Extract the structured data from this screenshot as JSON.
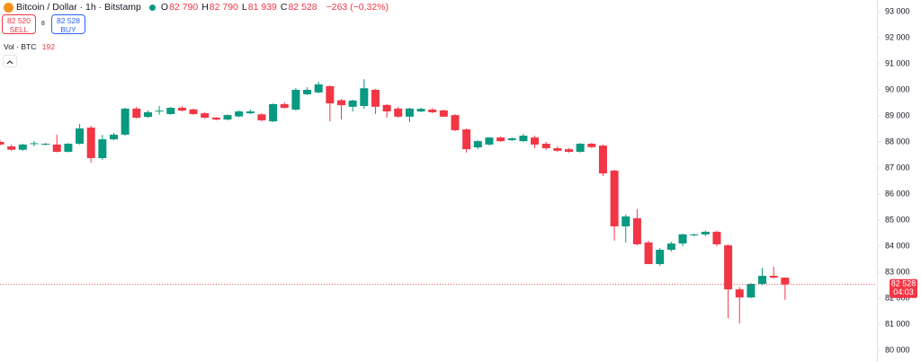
{
  "toolbar": {
    "symbol": "Bitcoin / Dollar · 1h · Bitstamp",
    "ohlc": [
      {
        "key": "O",
        "text": "82 790"
      },
      {
        "key": "H",
        "text": "82 790"
      },
      {
        "key": "L",
        "text": "81 939"
      },
      {
        "key": "C",
        "text": "82 528"
      }
    ],
    "change": "−263 (−0,32%)",
    "sell_price": "82 520",
    "sell_label": "SELL",
    "spread": "8",
    "buy_price": "82 528",
    "buy_label": "BUY",
    "volume_label": "Vol · BTC",
    "volume_value": "192"
  },
  "chart_data": {
    "type": "candlestick",
    "up_color": "#089981",
    "down_color": "#f23645",
    "grid": false,
    "ylim": [
      79500,
      93000
    ],
    "yticks": [
      {
        "value": 80000,
        "label": "80 000"
      },
      {
        "value": 81000,
        "label": "81 000"
      },
      {
        "value": 82000,
        "label": "82 000"
      },
      {
        "value": 83000,
        "label": "83 000"
      },
      {
        "value": 84000,
        "label": "84 000"
      },
      {
        "value": 85000,
        "label": "85 000"
      },
      {
        "value": 86000,
        "label": "86 000"
      },
      {
        "value": 87000,
        "label": "87 000"
      },
      {
        "value": 88000,
        "label": "88 000"
      },
      {
        "value": 89000,
        "label": "89 000"
      },
      {
        "value": 90000,
        "label": "90 000"
      },
      {
        "value": 91000,
        "label": "91 000"
      },
      {
        "value": 92000,
        "label": "92 000"
      },
      {
        "value": 93000,
        "label": "93 000"
      }
    ],
    "open": [
      88000,
      87830,
      87700,
      87930,
      87900,
      87900,
      87620,
      87930,
      88550,
      87380,
      88100,
      88280,
      89280,
      88960,
      89170,
      89070,
      89310,
      89250,
      89100,
      88930,
      88860,
      88980,
      89100,
      89060,
      88790,
      89450,
      89240,
      89830,
      89900,
      90140,
      89600,
      89350,
      89380,
      90000,
      89420,
      89280,
      88970,
      89170,
      89240,
      89210,
      89030,
      88480,
      87790,
      87900,
      88170,
      88070,
      88030,
      88170,
      87930,
      87760,
      87720,
      87620,
      87930,
      87860,
      86900,
      84760,
      85070,
      84140,
      83310,
      83860,
      84100,
      84420,
      84450,
      84550,
      84030,
      82340,
      82030,
      82550,
      82860,
      82790
    ],
    "high": [
      88070,
      87900,
      87930,
      88040,
      87960,
      88280,
      87960,
      88690,
      88620,
      88270,
      88350,
      89310,
      89350,
      89210,
      89380,
      89340,
      89380,
      89280,
      89140,
      88960,
      89060,
      89210,
      89240,
      89100,
      89480,
      89520,
      90070,
      90100,
      90310,
      90170,
      89650,
      89620,
      90410,
      90030,
      89450,
      89350,
      89310,
      89310,
      89300,
      89240,
      89070,
      88520,
      88070,
      88170,
      88210,
      88170,
      88310,
      88240,
      88000,
      87830,
      87760,
      87960,
      87960,
      87900,
      86930,
      85210,
      85420,
      84210,
      83930,
      84170,
      84480,
      84480,
      84600,
      84590,
      84070,
      82420,
      82580,
      83170,
      83210,
      82790
    ],
    "low": [
      87860,
      87660,
      87660,
      87830,
      87860,
      87600,
      87600,
      87900,
      87210,
      87310,
      88060,
      88240,
      88900,
      88930,
      89040,
      89040,
      89170,
      89040,
      88900,
      88830,
      88830,
      88950,
      89070,
      88790,
      88760,
      89280,
      89210,
      89800,
      89870,
      88790,
      88860,
      89170,
      89270,
      89070,
      88930,
      88930,
      88760,
      89140,
      89100,
      88960,
      88420,
      87590,
      87720,
      87860,
      88000,
      88030,
      88000,
      87760,
      87690,
      87620,
      87590,
      87590,
      87770,
      86690,
      84210,
      84140,
      84030,
      83310,
      83240,
      83790,
      84000,
      84380,
      84380,
      84000,
      81240,
      81030,
      82000,
      82500,
      82760,
      81939
    ],
    "close": [
      87900,
      87700,
      87900,
      87950,
      87930,
      87620,
      87930,
      88520,
      87380,
      88100,
      88280,
      89280,
      88930,
      89140,
      89200,
      89310,
      89200,
      89070,
      88930,
      88860,
      89030,
      89170,
      89170,
      88830,
      89450,
      89310,
      90000,
      90000,
      90210,
      89480,
      89410,
      89590,
      90060,
      89350,
      89170,
      88970,
      89280,
      89270,
      89140,
      88970,
      88450,
      87720,
      88030,
      88170,
      88030,
      88140,
      88240,
      87900,
      87760,
      87660,
      87620,
      87930,
      87800,
      86790,
      84760,
      85140,
      84070,
      83310,
      83860,
      84100,
      84450,
      84450,
      84550,
      84070,
      82340,
      82030,
      82550,
      82860,
      82790,
      82528
    ],
    "price_label": "82 528",
    "countdown": "04:03"
  }
}
